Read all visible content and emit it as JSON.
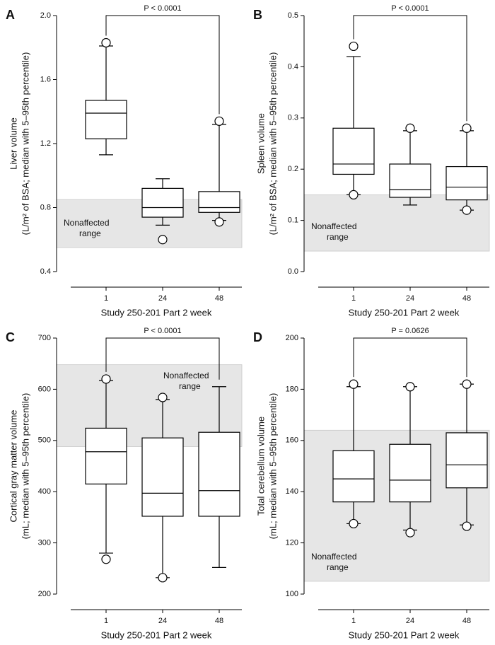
{
  "chart_data": [
    {
      "type": "box",
      "panel": "A",
      "ylabel": [
        "Liver volume",
        "(L/m² of BSA; median with 5–95th percentile)"
      ],
      "xlabel": "Study 250-201 Part 2 week",
      "categories": [
        "1",
        "24",
        "48"
      ],
      "whisker_low": [
        1.13,
        0.69,
        0.72
      ],
      "q1": [
        1.23,
        0.74,
        0.77
      ],
      "median": [
        1.39,
        0.8,
        0.8
      ],
      "q3": [
        1.47,
        0.92,
        0.9
      ],
      "whisker_high": [
        1.81,
        0.98,
        1.32
      ],
      "outliers": [
        [
          1.83
        ],
        [
          0.6
        ],
        [
          1.34,
          0.71
        ]
      ],
      "reference_band": {
        "label": [
          "Nonaffected",
          "range"
        ],
        "range": [
          0.55,
          0.85
        ],
        "label_corner": "lower-left"
      },
      "annotation": "P < 0.0001",
      "ylim": [
        0.4,
        2.0
      ],
      "yticks": [
        0.4,
        0.8,
        1.2,
        1.6,
        {
          "value": 2,
          "label": "2.0"
        }
      ]
    },
    {
      "type": "box",
      "panel": "B",
      "ylabel": [
        "Spleen volume",
        "(L/m² of BSA; median with 5–95th percentile)"
      ],
      "xlabel": "Study 250-201 Part 2 week",
      "categories": [
        "1",
        "24",
        "48"
      ],
      "whisker_low": [
        0.15,
        0.13,
        0.12
      ],
      "q1": [
        0.19,
        0.145,
        0.14
      ],
      "median": [
        0.21,
        0.16,
        0.165
      ],
      "q3": [
        0.28,
        0.21,
        0.205
      ],
      "whisker_high": [
        0.42,
        0.275,
        0.275
      ],
      "outliers": [
        [
          0.44,
          0.15
        ],
        [
          0.28
        ],
        [
          0.28,
          0.12
        ]
      ],
      "reference_band": {
        "label": [
          "Nonaffected",
          "range"
        ],
        "range": [
          0.04,
          0.15
        ],
        "label_corner": "lower-left"
      },
      "annotation": "P < 0.0001",
      "ylim": [
        0,
        0.5
      ],
      "yticks": [
        {
          "value": 0,
          "label": "0.0"
        },
        0.1,
        0.2,
        0.3,
        0.4,
        0.5
      ]
    },
    {
      "type": "box",
      "panel": "C",
      "ylabel": [
        "Cortical gray matter volume",
        "(mL; median with 5–95th percentile)"
      ],
      "xlabel": "Study 250-201 Part 2 week",
      "categories": [
        "1",
        "24",
        "48"
      ],
      "whisker_low": [
        280,
        232,
        252
      ],
      "q1": [
        415,
        352,
        352
      ],
      "median": [
        478,
        397,
        402
      ],
      "q3": [
        524,
        505,
        516
      ],
      "whisker_high": [
        617,
        580,
        605
      ],
      "outliers": [
        [
          620,
          268
        ],
        [
          584,
          232
        ],
        []
      ],
      "reference_band": {
        "label": [
          "Nonaffected",
          "range"
        ],
        "range": [
          488,
          648
        ],
        "label_corner": "upper-center"
      },
      "annotation": "P < 0.0001",
      "ylim": [
        200,
        700
      ],
      "yticks": [
        200,
        300,
        400,
        500,
        600,
        700
      ]
    },
    {
      "type": "box",
      "panel": "D",
      "ylabel": [
        "Total cerebellum volume",
        "(mL; median with 5–95th percentile)"
      ],
      "xlabel": "Study 250-201 Part 2 week",
      "categories": [
        "1",
        "24",
        "48"
      ],
      "whisker_low": [
        127.5,
        125,
        127
      ],
      "q1": [
        136,
        136,
        141.5
      ],
      "median": [
        145,
        144.5,
        150.5
      ],
      "q3": [
        156,
        158.5,
        163
      ],
      "whisker_high": [
        181,
        181,
        182
      ],
      "outliers": [
        [
          182,
          127.5
        ],
        [
          181,
          124
        ],
        [
          182,
          126.5
        ]
      ],
      "reference_band": {
        "label": [
          "Nonaffected",
          "range"
        ],
        "range": [
          105,
          164
        ],
        "label_corner": "lower-left"
      },
      "annotation": "P = 0.0626",
      "ylim": [
        100,
        200
      ],
      "yticks": [
        100,
        120,
        140,
        160,
        180,
        200
      ]
    }
  ]
}
